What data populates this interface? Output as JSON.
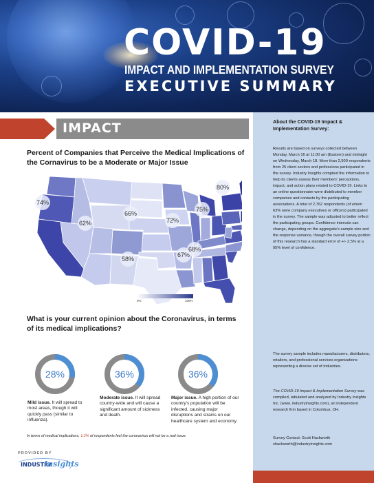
{
  "header": {
    "title": "COVID-19",
    "subtitle": "IMPACT AND IMPLEMENTATION SURVEY",
    "exec": "EXECUTIVE SUMMARY"
  },
  "section": {
    "label": "IMPACT"
  },
  "map": {
    "title": "Percent of Companies that Perceive the Medical Implications of the Cornavirus to be a Moderate or Major Issue",
    "labels": [
      "74%",
      "62%",
      "66%",
      "72%",
      "75%",
      "80%",
      "58%",
      "67%",
      "68%"
    ],
    "legend_min": "0%",
    "legend_max": "100%",
    "colors": {
      "light": "#e8ebf6",
      "mid": "#8e9ad3",
      "dark": "#2e3a94"
    }
  },
  "question": {
    "title": "What is your current opinion about the Coronavirus, in terms of its medical implications?",
    "options": [
      {
        "pct": "28%",
        "value": 0.28,
        "label_bold": "Mild issue.",
        "label_rest": " It will spread to most areas, though it will quickly pass (similar to influenza)."
      },
      {
        "pct": "36%",
        "value": 0.36,
        "label_bold": "Moderate issue.",
        "label_rest": " It will spread country-wide and will cause a significant amount of sickness and death."
      },
      {
        "pct": "36%",
        "value": 0.36,
        "label_bold": "Major issue.",
        "label_rest": " A high portion of our country's population will be infected, causing major disruptions and strains on our healthcare system and economy."
      }
    ],
    "footnote_pre": "In terms of medical implications, ",
    "footnote_hl": "1.2%",
    "footnote_post": " of respondents feel the coronavirus will not be a real issue."
  },
  "provider": {
    "label": "PROVIDED BY",
    "logo_word1": "INDUSTRY",
    "logo_word2": "Insights"
  },
  "sidebar": {
    "title": "About the COVID-19 Impact & Implementation Survey:",
    "para1": "Results are based on surveys collected between Monday, March 16 at 11:00 am (Eastern) and midnight on Wednesday, March 18.  More than 2,500 respondents from 25 client sectors and professions participated in the survey. Industry Insights compiled the information to help its clients assess their members' perceptions, impact, and action plans related to COVID-19.  Links to an online questionnaire were distributed to member companies and contacts by the participating associations.   A total of 2,762 respondents (of whom 63% were company executives or officers) participated in the survey.  The sample was adjusted to better reflect the participating groups. Confidence intervals can change, depending on the aggregate's sample size and the response variance, though the overall survey portion of this research has a standard error of +/- 2.5% at a 95% level of confidence.",
    "para2": "The survey sample includes manufacturers, distributors, retailers, and professional services organizations representing a diverse set of industries.",
    "para3_italic": "The COVID-19 Impact & Implementation Survey",
    "para3_rest": " was compiled, tabulated and analyzed by Industry Insights Inc. (www. industryinsights.com), an independent research firm based in Columbus, OH.",
    "contact_line1": "Survey Contact:  Scott Hackworth",
    "contact_line2": "shackworth@industryinsights.com"
  }
}
